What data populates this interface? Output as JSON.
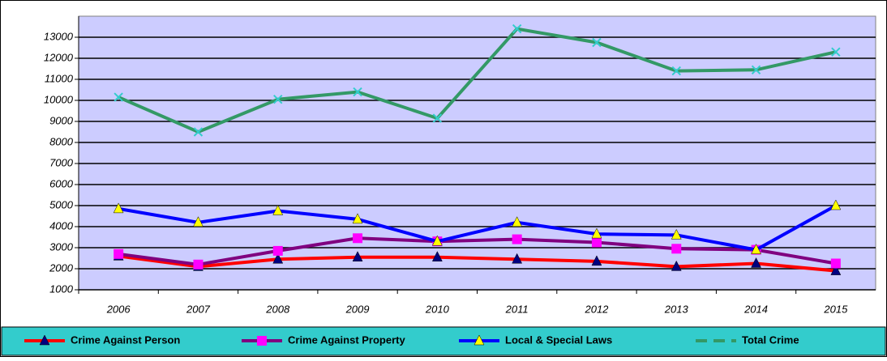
{
  "chart_data": {
    "type": "line",
    "categories": [
      "2006",
      "2007",
      "2008",
      "2009",
      "2010",
      "2011",
      "2012",
      "2013",
      "2014",
      "2015"
    ],
    "series": [
      {
        "name": "Crime Against Person",
        "color": "#ff0000",
        "marker": "triangle",
        "marker_color": "#000080",
        "values": [
          2600,
          2100,
          2450,
          2550,
          2550,
          2450,
          2350,
          2100,
          2250,
          1900
        ]
      },
      {
        "name": "Crime Against Property",
        "color": "#800080",
        "marker": "square",
        "marker_color": "#ff00ff",
        "values": [
          2700,
          2200,
          2850,
          3450,
          3300,
          3400,
          3250,
          2950,
          2900,
          2250
        ]
      },
      {
        "name": "Local & Special Laws",
        "color": "#0000ff",
        "marker": "triangle",
        "marker_color": "#ffff00",
        "values": [
          4850,
          4200,
          4750,
          4350,
          3300,
          4200,
          3650,
          3600,
          2900,
          5000
        ]
      },
      {
        "name": "Total Crime",
        "color": "#339966",
        "marker": "x",
        "marker_color": "#33cccc",
        "dashed_legend": true,
        "values": [
          10150,
          8500,
          10050,
          10400,
          9150,
          13400,
          12750,
          11400,
          11450,
          12300
        ]
      }
    ],
    "ylim": [
      1000,
      14000
    ],
    "yticks": [
      1000,
      2000,
      3000,
      4000,
      5000,
      6000,
      7000,
      8000,
      9000,
      10000,
      11000,
      12000,
      13000
    ],
    "grid": true,
    "legend": "bottom"
  }
}
